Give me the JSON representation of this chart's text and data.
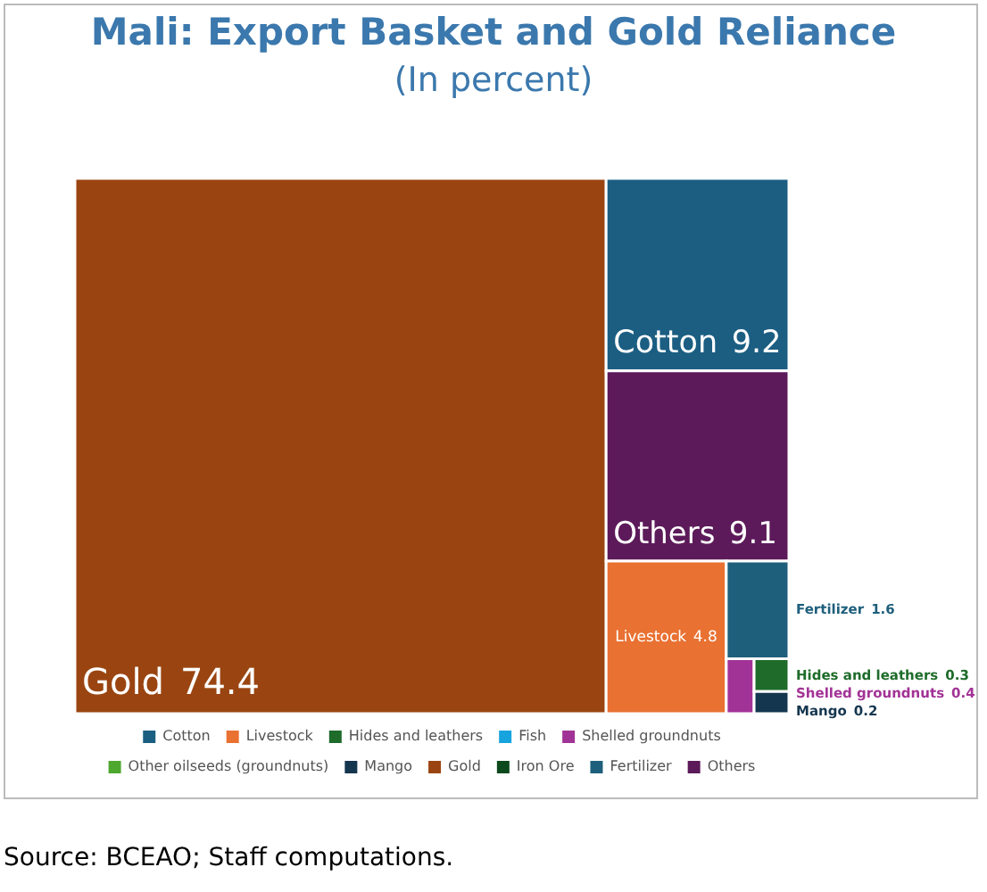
{
  "chart_data": {
    "type": "other",
    "title": "Mali: Export Basket and Gold Reliance",
    "subtitle": "(In percent)",
    "series": [
      {
        "name": "Cotton",
        "color": "#1b5e82",
        "values": [
          9.2
        ]
      },
      {
        "name": "Livestock",
        "color": "#e97132",
        "values": [
          4.8
        ]
      },
      {
        "name": "Hides and leathers",
        "color": "#1e6b2a",
        "values": [
          0.3
        ]
      },
      {
        "name": "Fish",
        "color": "#16a3de",
        "values": [
          null
        ]
      },
      {
        "name": "Shelled groundnuts",
        "color": "#a23396",
        "values": [
          0.4
        ]
      },
      {
        "name": "Other oilseeds (groundnuts)",
        "color": "#4ea72e",
        "values": [
          null
        ]
      },
      {
        "name": "Mango",
        "color": "#14364f",
        "values": [
          0.2
        ]
      },
      {
        "name": "Gold",
        "color": "#9a4511",
        "values": [
          74.4
        ]
      },
      {
        "name": "Iron Ore",
        "color": "#0c4a1e",
        "values": [
          null
        ]
      },
      {
        "name": "Fertilizer",
        "color": "#1e5f7c",
        "values": [
          1.6
        ]
      },
      {
        "name": "Others",
        "color": "#5c1a5a",
        "values": [
          9.1
        ]
      }
    ],
    "data_labels": true,
    "legend": "bottom",
    "annotations": [
      "Source: BCEAO; Staff computations."
    ]
  }
}
